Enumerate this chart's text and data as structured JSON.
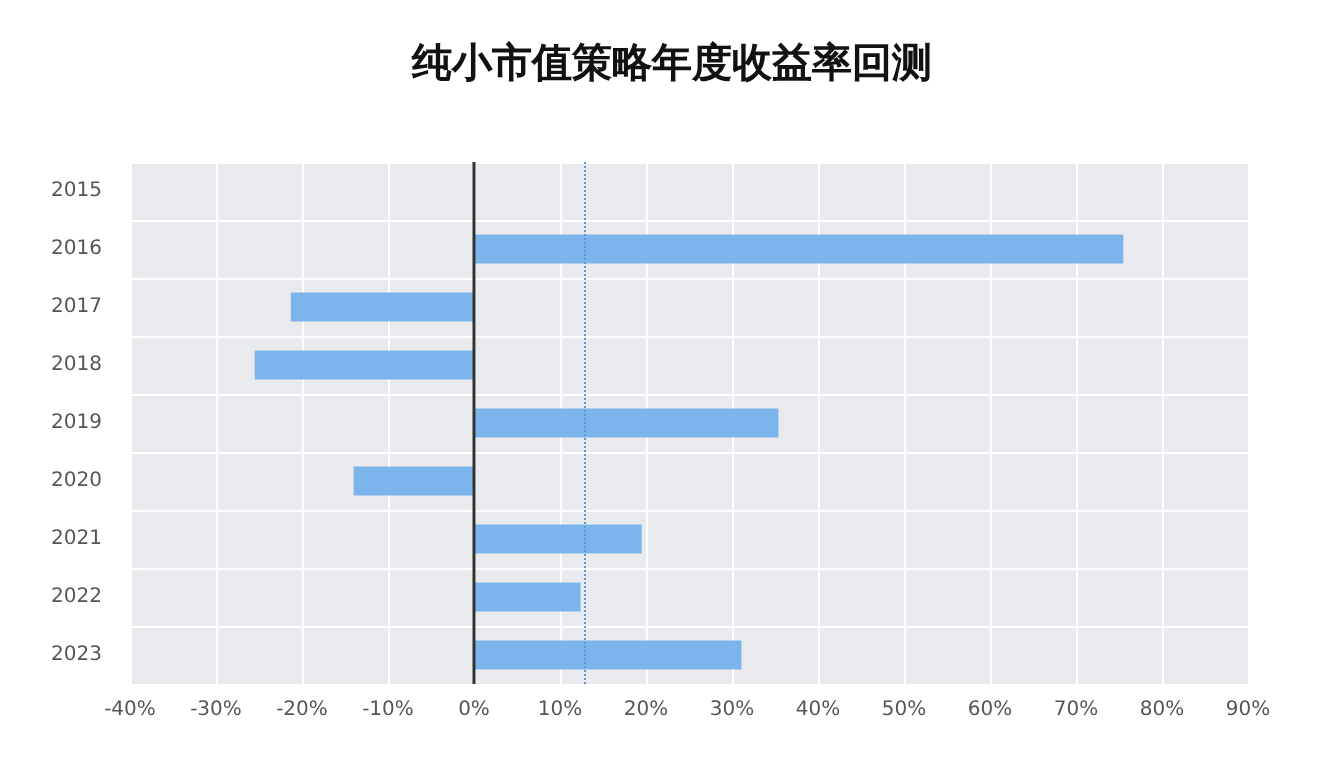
{
  "chart_data": {
    "type": "bar",
    "orientation": "horizontal",
    "title": "纯小市值策略年度收益率回测",
    "categories": [
      "2015",
      "2016",
      "2017",
      "2018",
      "2019",
      "2020",
      "2021",
      "2022",
      "2023"
    ],
    "values": [
      null,
      75.5,
      -21.3,
      -25.5,
      35.4,
      -14.0,
      19.5,
      12.4,
      31.1
    ],
    "color": "#7cb5ec",
    "xlim": [
      -40,
      90
    ],
    "xticks": [
      {
        "value": -40,
        "label": "-40%"
      },
      {
        "value": -30,
        "label": "-30%"
      },
      {
        "value": -20,
        "label": "-20%"
      },
      {
        "value": -10,
        "label": "-10%"
      },
      {
        "value": 0,
        "label": "0%"
      },
      {
        "value": 10,
        "label": "10%"
      },
      {
        "value": 20,
        "label": "20%"
      },
      {
        "value": 30,
        "label": "30%"
      },
      {
        "value": 40,
        "label": "40%"
      },
      {
        "value": 50,
        "label": "50%"
      },
      {
        "value": 60,
        "label": "60%"
      },
      {
        "value": 70,
        "label": "70%"
      },
      {
        "value": 80,
        "label": "80%"
      },
      {
        "value": 90,
        "label": "90%"
      }
    ],
    "ref_lines": [
      {
        "axis": "x",
        "value": 12.9,
        "label": null,
        "color": "#5b9bd5",
        "line_style": "dotted"
      }
    ],
    "grid": true
  }
}
